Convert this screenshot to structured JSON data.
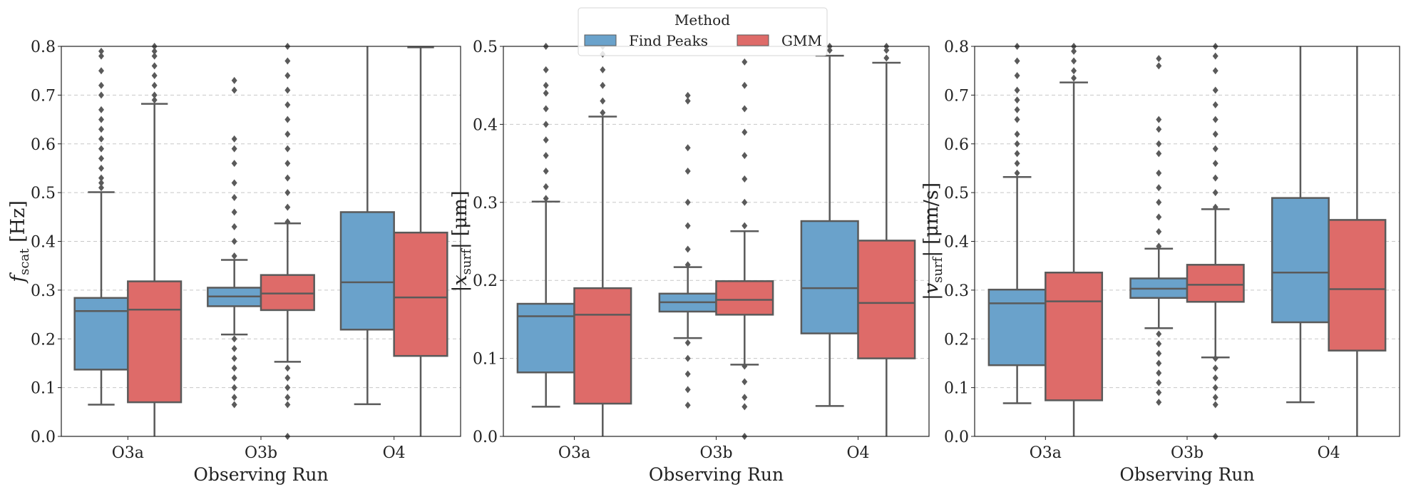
{
  "colors": {
    "Find Peaks": "#6aa2cb",
    "GMM": "#de6b69",
    "edge": "#5a5a5a",
    "grid": "#c8c8c8"
  },
  "legend": {
    "title": "Method",
    "entries": [
      "Find Peaks",
      "GMM"
    ],
    "placement": "top-center"
  },
  "chart_data": [
    {
      "type": "box",
      "ylabel": {
        "pre": "f",
        "sub": "scat",
        "post": " [Hz]"
      },
      "xlabel": "Observing Run",
      "categories": [
        "O3a",
        "O3b",
        "O4"
      ],
      "ylim": [
        0,
        0.8
      ],
      "yticks": [
        "0.0",
        "0.1",
        "0.2",
        "0.3",
        "0.4",
        "0.5",
        "0.6",
        "0.7",
        "0.8"
      ],
      "grid": "y-dashed",
      "series": [
        {
          "name": "Find Peaks",
          "boxes": [
            {
              "whislo": 0.065,
              "q1": 0.137,
              "med": 0.257,
              "q3": 0.284,
              "whishi": 0.501,
              "fliers": [
                0.51,
                0.52,
                0.53,
                0.55,
                0.57,
                0.59,
                0.61,
                0.63,
                0.65,
                0.67,
                0.7,
                0.72,
                0.75,
                0.78,
                0.79
              ]
            },
            {
              "whislo": 0.209,
              "q1": 0.267,
              "med": 0.287,
              "q3": 0.305,
              "whishi": 0.362,
              "fliers": [
                0.065,
                0.08,
                0.1,
                0.12,
                0.14,
                0.16,
                0.18,
                0.2,
                0.37,
                0.4,
                0.43,
                0.46,
                0.49,
                0.52,
                0.56,
                0.59,
                0.61,
                0.71,
                0.73
              ]
            },
            {
              "whislo": 0.066,
              "q1": 0.219,
              "med": 0.316,
              "q3": 0.46,
              "whishi": 0.85,
              "fliers": []
            }
          ]
        },
        {
          "name": "GMM",
          "boxes": [
            {
              "whislo": 0.0,
              "q1": 0.07,
              "med": 0.26,
              "q3": 0.318,
              "whishi": 0.682,
              "fliers": [
                0.69,
                0.7,
                0.72,
                0.74,
                0.76,
                0.78,
                0.79,
                0.8
              ]
            },
            {
              "whislo": 0.153,
              "q1": 0.259,
              "med": 0.293,
              "q3": 0.331,
              "whishi": 0.437,
              "fliers": [
                0.0,
                0.065,
                0.08,
                0.1,
                0.12,
                0.14,
                0.44,
                0.47,
                0.5,
                0.53,
                0.56,
                0.59,
                0.62,
                0.65,
                0.68,
                0.71,
                0.74,
                0.77,
                0.8
              ]
            },
            {
              "whislo": 0.0,
              "q1": 0.165,
              "med": 0.285,
              "q3": 0.418,
              "whishi": 0.798,
              "fliers": []
            }
          ]
        }
      ]
    },
    {
      "type": "box",
      "ylabel": {
        "pre": "|x",
        "sub": "surf",
        "post": "| [μm]"
      },
      "xlabel": "Observing Run",
      "categories": [
        "O3a",
        "O3b",
        "O4"
      ],
      "ylim": [
        0,
        0.5
      ],
      "yticks": [
        "0.0",
        "0.1",
        "0.2",
        "0.3",
        "0.4",
        "0.5"
      ],
      "grid": "y-dashed",
      "series": [
        {
          "name": "Find Peaks",
          "boxes": [
            {
              "whislo": 0.038,
              "q1": 0.082,
              "med": 0.154,
              "q3": 0.17,
              "whishi": 0.301,
              "fliers": [
                0.305,
                0.32,
                0.34,
                0.36,
                0.38,
                0.4,
                0.42,
                0.44,
                0.45,
                0.47,
                0.5
              ]
            },
            {
              "whislo": 0.126,
              "q1": 0.16,
              "med": 0.172,
              "q3": 0.183,
              "whishi": 0.217,
              "fliers": [
                0.04,
                0.06,
                0.08,
                0.1,
                0.12,
                0.22,
                0.24,
                0.27,
                0.3,
                0.34,
                0.37,
                0.43,
                0.437
              ]
            },
            {
              "whislo": 0.039,
              "q1": 0.132,
              "med": 0.19,
              "q3": 0.276,
              "whishi": 0.488,
              "fliers": [
                0.495,
                0.5
              ]
            }
          ]
        },
        {
          "name": "GMM",
          "boxes": [
            {
              "whislo": 0.0,
              "q1": 0.042,
              "med": 0.156,
              "q3": 0.19,
              "whishi": 0.41,
              "fliers": [
                0.415,
                0.43,
                0.45,
                0.47,
                0.49,
                0.5
              ]
            },
            {
              "whislo": 0.092,
              "q1": 0.156,
              "med": 0.175,
              "q3": 0.199,
              "whishi": 0.263,
              "fliers": [
                0.0,
                0.038,
                0.05,
                0.07,
                0.09,
                0.27,
                0.3,
                0.33,
                0.36,
                0.39,
                0.42,
                0.45,
                0.48
              ]
            },
            {
              "whislo": 0.0,
              "q1": 0.1,
              "med": 0.171,
              "q3": 0.251,
              "whishi": 0.479,
              "fliers": [
                0.485,
                0.495,
                0.5
              ]
            }
          ]
        }
      ]
    },
    {
      "type": "box",
      "ylabel": {
        "pre": "|v",
        "sub": "surf",
        "post": "| [μm/s]"
      },
      "xlabel": "Observing Run",
      "categories": [
        "O3a",
        "O3b",
        "O4"
      ],
      "ylim": [
        0,
        0.8
      ],
      "yticks": [
        "0.0",
        "0.1",
        "0.2",
        "0.3",
        "0.4",
        "0.5",
        "0.6",
        "0.7",
        "0.8"
      ],
      "grid": "y-dashed",
      "series": [
        {
          "name": "Find Peaks",
          "boxes": [
            {
              "whislo": 0.068,
              "q1": 0.146,
              "med": 0.273,
              "q3": 0.301,
              "whishi": 0.532,
              "fliers": [
                0.54,
                0.56,
                0.58,
                0.6,
                0.62,
                0.65,
                0.67,
                0.69,
                0.71,
                0.74,
                0.77,
                0.8
              ]
            },
            {
              "whislo": 0.222,
              "q1": 0.284,
              "med": 0.303,
              "q3": 0.324,
              "whishi": 0.385,
              "fliers": [
                0.07,
                0.09,
                0.11,
                0.13,
                0.15,
                0.17,
                0.19,
                0.21,
                0.39,
                0.42,
                0.45,
                0.48,
                0.51,
                0.54,
                0.58,
                0.6,
                0.63,
                0.65,
                0.76,
                0.775
              ]
            },
            {
              "whislo": 0.07,
              "q1": 0.234,
              "med": 0.336,
              "q3": 0.489,
              "whishi": 0.85,
              "fliers": []
            }
          ]
        },
        {
          "name": "GMM",
          "boxes": [
            {
              "whislo": 0.0,
              "q1": 0.074,
              "med": 0.277,
              "q3": 0.336,
              "whishi": 0.726,
              "fliers": [
                0.735,
                0.75,
                0.77,
                0.79,
                0.8
              ]
            },
            {
              "whislo": 0.162,
              "q1": 0.276,
              "med": 0.311,
              "q3": 0.352,
              "whishi": 0.466,
              "fliers": [
                0.0,
                0.065,
                0.08,
                0.1,
                0.12,
                0.14,
                0.16,
                0.47,
                0.5,
                0.53,
                0.56,
                0.59,
                0.62,
                0.65,
                0.68,
                0.71,
                0.75,
                0.78,
                0.8
              ]
            },
            {
              "whislo": 0.0,
              "q1": 0.176,
              "med": 0.302,
              "q3": 0.444,
              "whishi": 0.85,
              "fliers": []
            }
          ]
        }
      ]
    }
  ]
}
